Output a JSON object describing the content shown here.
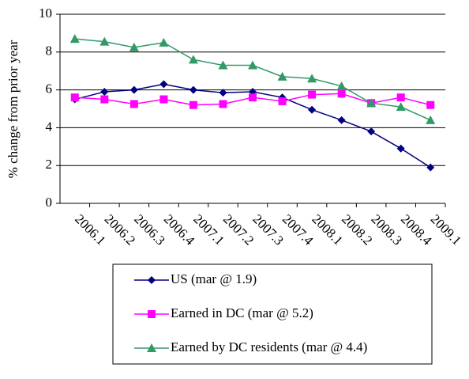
{
  "chart_data": {
    "type": "line",
    "y_label": "% change from prior year",
    "categories": [
      "2006.1",
      "2006.2",
      "2006.3",
      "2006.4",
      "2007.1",
      "2007.2",
      "2007.3",
      "2007.4",
      "2008.1",
      "2008.2",
      "2008.3",
      "2008.4",
      "2009.1"
    ],
    "series": [
      {
        "name": "US (mar @ 1.9)",
        "color": "#000080",
        "marker": "diamond",
        "values": [
          5.5,
          5.9,
          6.0,
          6.3,
          6.0,
          5.85,
          5.9,
          5.6,
          4.95,
          4.4,
          3.8,
          2.9,
          1.9
        ]
      },
      {
        "name": "Earned in DC (mar @ 5.2)",
        "color": "#ff00ff",
        "marker": "square",
        "values": [
          5.6,
          5.5,
          5.25,
          5.5,
          5.2,
          5.25,
          5.6,
          5.4,
          5.75,
          5.8,
          5.3,
          5.6,
          5.2
        ]
      },
      {
        "name": "Earned by DC residents (mar @ 4.4)",
        "color": "#339966",
        "marker": "triangle",
        "values": [
          8.7,
          8.55,
          8.25,
          8.5,
          7.6,
          7.3,
          7.3,
          6.7,
          6.6,
          6.2,
          5.3,
          5.1,
          4.4
        ]
      }
    ],
    "ylim": [
      0,
      10
    ],
    "yticks": [
      0,
      2,
      4,
      6,
      8,
      10
    ],
    "grid": true,
    "legend": "bottom"
  }
}
